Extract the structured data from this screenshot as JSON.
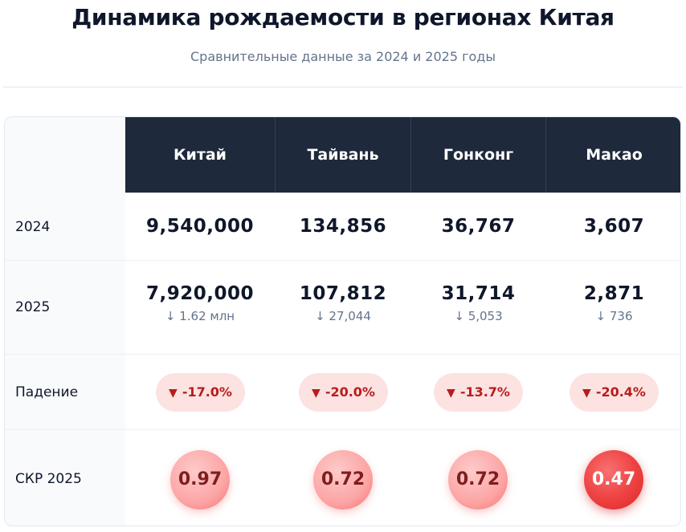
{
  "header": {
    "title": "Динамика рождаемости в регионах Китая",
    "subtitle": "Сравнительные данные за 2024 и 2025 годы"
  },
  "table": {
    "columns": [
      "Китай",
      "Тайвань",
      "Гонконг",
      "Макао"
    ],
    "row_labels": {
      "y2024": "2024",
      "y2025": "2025",
      "decline": "Падение",
      "tfr": "СКР 2025"
    },
    "values_2024": [
      "9,540,000",
      "134,856",
      "36,767",
      "3,607"
    ],
    "values_2025": [
      "7,920,000",
      "107,812",
      "31,714",
      "2,871"
    ],
    "diff_2025": [
      "↓ 1.62 млн",
      "↓ 27,044",
      "↓ 5,053",
      "↓ 736"
    ],
    "decline": [
      {
        "icon": "▼",
        "value": "-17.0%"
      },
      {
        "icon": "▼",
        "value": "-20.0%"
      },
      {
        "icon": "▼",
        "value": "-13.7%"
      },
      {
        "icon": "▼",
        "value": "-20.4%"
      }
    ],
    "tfr": [
      "0.97",
      "0.72",
      "0.72",
      "0.47"
    ]
  },
  "colors": {
    "header_bg": "#1e293b",
    "decline_pill_bg": "#fde2e2",
    "decline_text": "#b91c1c",
    "tfr_strong": "#dc2626"
  }
}
